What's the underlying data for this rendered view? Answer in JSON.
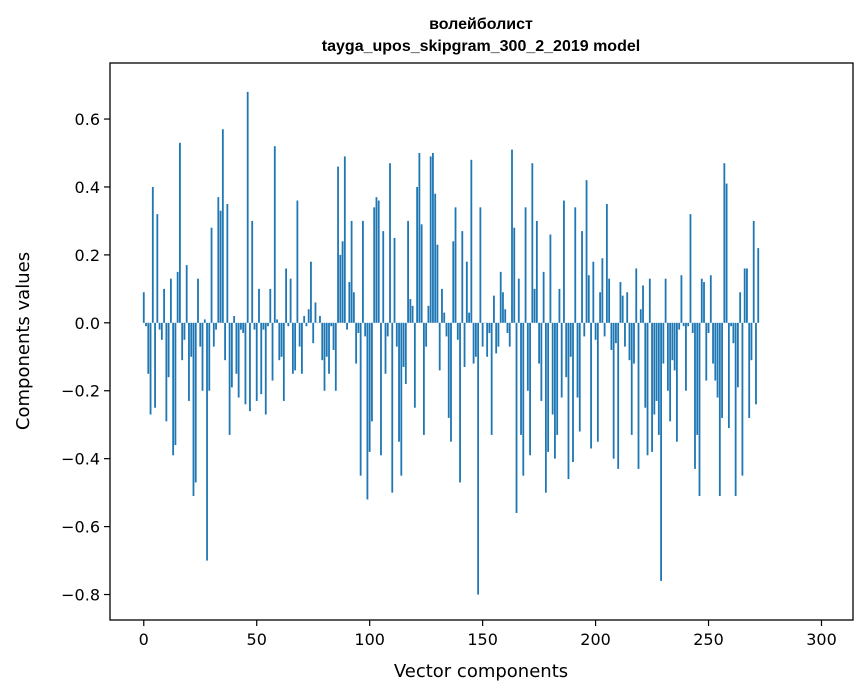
{
  "chart_data": {
    "type": "bar",
    "title": "волейболист",
    "subtitle": "tayga_upos_skipgram_300_2_2019 model",
    "xlabel": "Vector components",
    "ylabel": "Components values",
    "xlim": [
      -14.95,
      313.95
    ],
    "ylim": [
      -0.875,
      0.765
    ],
    "xticks": [
      0,
      50,
      100,
      150,
      200,
      250,
      300
    ],
    "yticks": [
      -0.8,
      -0.6,
      -0.4,
      -0.2,
      0.0,
      0.2,
      0.4,
      0.6
    ],
    "ytick_labels": [
      "−0.8",
      "−0.6",
      "−0.4",
      "−0.2",
      "0.0",
      "0.2",
      "0.4",
      "0.6"
    ],
    "xtick_labels": [
      "0",
      "50",
      "100",
      "150",
      "200",
      "250",
      "300"
    ],
    "color": "#1f77b4",
    "values": [
      0.09,
      -0.01,
      -0.15,
      -0.27,
      0.4,
      -0.25,
      0.32,
      -0.02,
      -0.05,
      0.1,
      -0.29,
      -0.16,
      0.13,
      -0.39,
      -0.36,
      0.15,
      0.53,
      -0.11,
      -0.05,
      0.17,
      -0.23,
      -0.1,
      -0.51,
      -0.47,
      0.13,
      -0.07,
      -0.2,
      0.01,
      -0.7,
      -0.2,
      0.28,
      -0.07,
      -0.02,
      0.37,
      0.33,
      0.57,
      -0.11,
      0.35,
      -0.33,
      -0.19,
      0.02,
      -0.15,
      -0.22,
      -0.02,
      -0.03,
      -0.24,
      0.68,
      -0.26,
      0.3,
      -0.02,
      -0.23,
      0.1,
      -0.21,
      -0.02,
      -0.27,
      -0.01,
      0.1,
      -0.17,
      0.52,
      0.01,
      -0.11,
      -0.1,
      -0.23,
      0.16,
      -0.01,
      0.13,
      -0.15,
      -0.14,
      0.36,
      -0.07,
      -0.15,
      0.02,
      -0.01,
      0.04,
      0.18,
      -0.06,
      0.06,
      0.0,
      0.02,
      -0.11,
      -0.2,
      -0.1,
      -0.15,
      -0.01,
      -0.08,
      -0.2,
      0.46,
      0.2,
      0.24,
      0.49,
      -0.02,
      0.12,
      0.3,
      0.09,
      -0.12,
      -0.03,
      -0.45,
      0.3,
      -0.04,
      -0.52,
      -0.38,
      -0.29,
      0.34,
      0.37,
      0.36,
      -0.39,
      0.27,
      -0.15,
      -0.04,
      0.47,
      -0.5,
      0.25,
      -0.07,
      -0.35,
      -0.45,
      -0.13,
      -0.18,
      0.3,
      0.07,
      0.05,
      -0.25,
      0.4,
      0.5,
      0.29,
      -0.33,
      -0.07,
      0.05,
      0.49,
      0.5,
      0.38,
      0.23,
      -0.14,
      0.1,
      0.03,
      -0.04,
      -0.28,
      -0.35,
      0.24,
      0.34,
      -0.05,
      -0.47,
      0.27,
      -0.13,
      0.18,
      0.03,
      0.48,
      -0.12,
      -0.1,
      -0.8,
      0.34,
      -0.07,
      0.0,
      -0.1,
      -0.03,
      -0.33,
      0.08,
      -0.09,
      -0.07,
      0.15,
      0.09,
      0.04,
      -0.03,
      -0.07,
      0.51,
      0.28,
      -0.56,
      0.13,
      -0.33,
      -0.45,
      0.34,
      -0.2,
      -0.39,
      0.47,
      0.1,
      0.3,
      -0.12,
      -0.23,
      0.15,
      -0.5,
      -0.38,
      0.26,
      -0.27,
      -0.4,
      -0.33,
      0.1,
      -0.22,
      0.36,
      -0.16,
      -0.46,
      -0.1,
      -0.41,
      0.34,
      -0.22,
      -0.32,
      0.27,
      -0.04,
      0.42,
      0.14,
      -0.37,
      0.18,
      -0.05,
      -0.35,
      0.09,
      0.19,
      -0.04,
      0.35,
      0.13,
      -0.08,
      -0.4,
      -0.06,
      -0.43,
      0.12,
      0.08,
      -0.07,
      0.09,
      -0.11,
      -0.33,
      -0.12,
      0.16,
      -0.43,
      0.04,
      0.11,
      -0.25,
      -0.39,
      0.13,
      -0.38,
      -0.27,
      -0.23,
      -0.33,
      -0.76,
      -0.12,
      0.13,
      -0.2,
      -0.29,
      -0.11,
      -0.14,
      -0.35,
      -0.02,
      0.14,
      -0.01,
      -0.2,
      -0.01,
      0.32,
      -0.03,
      -0.43,
      -0.33,
      -0.51,
      0.13,
      0.12,
      -0.17,
      -0.03,
      0.14,
      -0.12,
      -0.17,
      -0.22,
      -0.51,
      -0.28,
      0.47,
      0.41,
      -0.31,
      -0.01,
      -0.06,
      -0.51,
      -0.19,
      0.09,
      -0.45,
      0.16,
      0.16,
      -0.28,
      -0.11,
      0.3,
      -0.24,
      0.22
    ]
  }
}
